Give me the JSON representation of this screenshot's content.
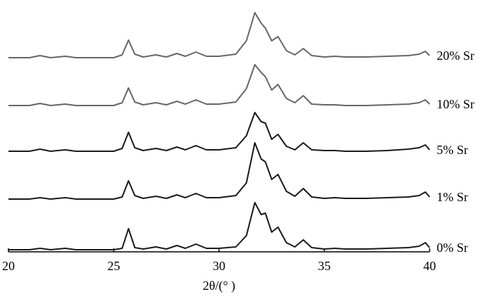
{
  "chart_data": {
    "type": "line",
    "xlabel": "2θ/(° )",
    "xlim": [
      20,
      40
    ],
    "xticks": [
      20,
      25,
      30,
      35,
      40
    ],
    "ylim": [
      0,
      350
    ],
    "x": [
      20,
      20.5,
      21,
      21.5,
      22,
      22.7,
      23.2,
      24,
      25,
      25.4,
      25.7,
      26,
      26.4,
      27,
      27.5,
      28,
      28.4,
      28.9,
      29.4,
      30,
      30.8,
      31.3,
      31.7,
      32.0,
      32.2,
      32.5,
      32.8,
      33.2,
      33.6,
      34.0,
      34.4,
      35,
      35.5,
      36,
      37,
      38,
      39,
      39.5,
      39.8,
      40
    ],
    "series": [
      {
        "name": "20% Sr",
        "color": "#666666",
        "values": [
          276,
          276,
          276,
          279,
          276,
          278,
          276,
          276,
          276,
          280,
          301,
          281,
          277,
          280,
          277,
          282,
          278,
          284,
          278,
          278,
          281,
          300,
          340,
          325,
          318,
          300,
          306,
          286,
          280,
          289,
          279,
          277,
          278,
          277,
          277,
          278,
          279,
          281,
          285,
          279
        ]
      },
      {
        "name": "10% Sr",
        "color": "#666666",
        "values": [
          208,
          208,
          208,
          211,
          208,
          210,
          208,
          208,
          208,
          212,
          233,
          213,
          209,
          212,
          209,
          214,
          210,
          216,
          210,
          210,
          213,
          232,
          266,
          255,
          249,
          230,
          238,
          218,
          212,
          222,
          210,
          209,
          209,
          208,
          208,
          209,
          210,
          212,
          216,
          210
        ]
      },
      {
        "name": "5% Sr",
        "color": "#1a1a1a",
        "values": [
          143,
          143,
          143,
          146,
          143,
          145,
          143,
          143,
          143,
          147,
          170,
          148,
          144,
          147,
          144,
          149,
          145,
          151,
          145,
          145,
          148,
          165,
          198,
          185,
          183,
          160,
          167,
          150,
          145,
          155,
          145,
          144,
          144,
          143,
          143,
          144,
          146,
          148,
          152,
          145
        ]
      },
      {
        "name": "1% Sr",
        "color": "#1a1a1a",
        "values": [
          75,
          75,
          75,
          77,
          75,
          77,
          75,
          75,
          75,
          78,
          101,
          80,
          76,
          79,
          76,
          81,
          77,
          83,
          77,
          77,
          80,
          98,
          155,
          132,
          128,
          103,
          110,
          86,
          79,
          90,
          78,
          76,
          77,
          76,
          76,
          77,
          78,
          80,
          85,
          78
        ]
      },
      {
        "name": "0% Sr",
        "color": "#1a1a1a",
        "values": [
          3,
          3,
          3,
          5,
          3,
          5,
          3,
          3,
          3,
          5,
          33,
          6,
          4,
          7,
          4,
          9,
          5,
          11,
          5,
          5,
          7,
          23,
          70,
          53,
          55,
          28,
          35,
          13,
          7,
          17,
          6,
          4,
          5,
          4,
          4,
          5,
          6,
          8,
          13,
          6
        ]
      }
    ]
  }
}
